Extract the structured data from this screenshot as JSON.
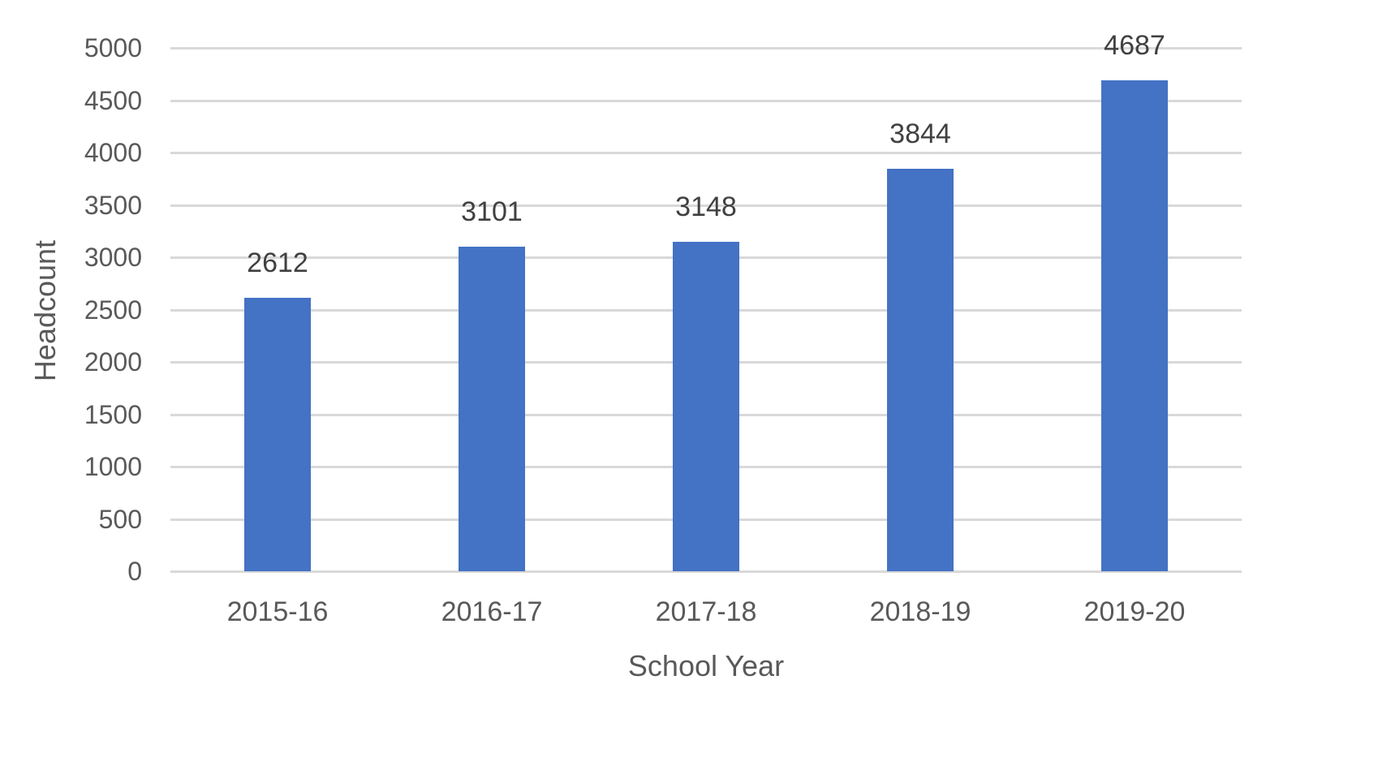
{
  "chart_data": {
    "type": "bar",
    "title": "",
    "xlabel": "School Year",
    "ylabel": "Headcount",
    "categories": [
      "2015-16",
      "2016-17",
      "2017-18",
      "2018-19",
      "2019-20"
    ],
    "values": [
      2612,
      3101,
      3148,
      3844,
      4687
    ],
    "data_labels": [
      "2612",
      "3101",
      "3148",
      "3844",
      "4687"
    ],
    "ylim": [
      0,
      5000
    ],
    "yticks": [
      "0",
      "500",
      "1000",
      "1500",
      "2000",
      "2500",
      "3000",
      "3500",
      "4000",
      "4500",
      "5000"
    ],
    "grid": true,
    "legend": null,
    "bar_color": "#4472c4"
  }
}
